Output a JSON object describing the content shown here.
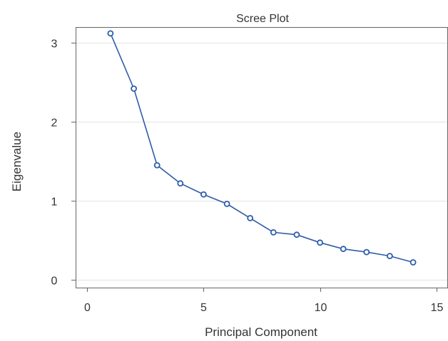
{
  "chart_data": {
    "type": "line",
    "title": "Scree Plot",
    "xlabel": "Principal Component",
    "ylabel": "Eigenvalue",
    "xlim": [
      -0.5,
      15.5
    ],
    "ylim": [
      -0.1,
      3.2
    ],
    "x_ticks": [
      0,
      5,
      10,
      15
    ],
    "y_ticks": [
      0,
      1,
      2,
      3
    ],
    "grid": "horizontal",
    "legend": "none",
    "marker": "circle",
    "line_color": "#2e5caa",
    "series": [
      {
        "x": [
          1,
          2,
          3,
          4,
          5,
          6,
          7,
          8,
          9,
          10,
          11,
          12,
          13,
          14
        ],
        "values": [
          3.12,
          2.42,
          1.45,
          1.22,
          1.08,
          0.96,
          0.78,
          0.6,
          0.57,
          0.47,
          0.39,
          0.35,
          0.3,
          0.22
        ]
      }
    ]
  }
}
